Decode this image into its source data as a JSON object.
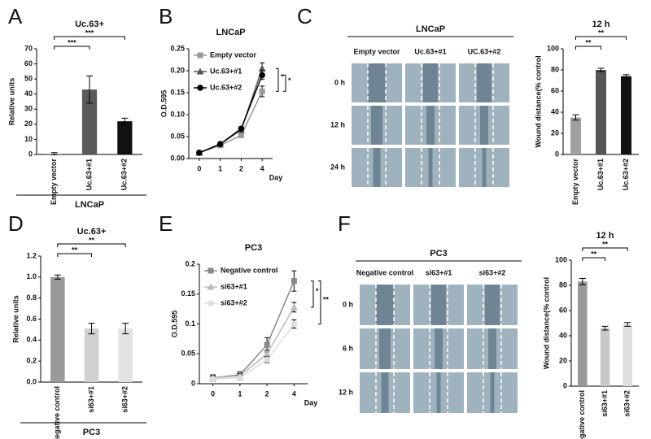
{
  "chart_data": [
    {
      "type": "bar",
      "panel": "A",
      "title": "Uc.63+",
      "ylabel": "Relative units",
      "group_label": "LNCaP",
      "categories": [
        "Empty vector",
        "Uc.63+#1",
        "Uc.63+#2"
      ],
      "values": [
        0.5,
        43,
        22
      ],
      "errors": [
        0.7,
        9,
        2
      ],
      "colors": [
        "#9a9a9a",
        "#5a5a5a",
        "#111111"
      ],
      "ylim": [
        0,
        70
      ],
      "yticks": [
        0,
        10,
        20,
        30,
        40,
        50,
        60,
        70
      ],
      "annotations": [
        "***",
        "***"
      ]
    },
    {
      "type": "line",
      "panel": "B",
      "title": "LNCaP",
      "ylabel": "O.D.595",
      "xlabel": "Day",
      "categories": [
        "0",
        "1",
        "2",
        "4"
      ],
      "series": [
        {
          "name": "Empty vector",
          "color": "#999999",
          "marker": "square",
          "values": [
            0.013,
            0.03,
            0.053,
            0.153
          ],
          "errors": [
            0.002,
            0.002,
            0.003,
            0.012
          ]
        },
        {
          "name": "Uc.63+#1",
          "color": "#555555",
          "marker": "triangle",
          "values": [
            0.013,
            0.033,
            0.065,
            0.205
          ],
          "errors": [
            0.002,
            0.002,
            0.004,
            0.013
          ]
        },
        {
          "name": "Uc.63+#2",
          "color": "#000000",
          "marker": "circle",
          "values": [
            0.013,
            0.033,
            0.068,
            0.19
          ],
          "errors": [
            0.002,
            0.002,
            0.004,
            0.01
          ]
        }
      ],
      "ylim": [
        0,
        0.25
      ],
      "yticks": [
        {
          "value": 0,
          "label": "0.00"
        },
        0.05,
        {
          "value": 0.1,
          "label": "0.10"
        },
        0.15,
        {
          "value": 0.2,
          "label": "0.20"
        },
        0.25
      ],
      "annotations": [
        "*",
        "*"
      ]
    },
    {
      "type": "bar",
      "title": "12 h",
      "ylabel": "Wound distance(% control",
      "categories": [
        "Empty vector",
        "Uc.63+#1",
        "Uc.63+#2"
      ],
      "values": [
        35,
        80,
        74
      ],
      "errors": [
        2.5,
        1.5,
        1.5
      ],
      "colors": [
        "#a0a0a0",
        "#555555",
        "#111111"
      ],
      "ylim": [
        0,
        100
      ],
      "yticks": [
        0,
        20,
        40,
        60,
        80,
        100
      ],
      "annotations": [
        "**",
        "**"
      ]
    },
    {
      "type": "bar",
      "panel": "D",
      "title": "Uc.63+",
      "ylabel": "Relative units",
      "group_label": "PC3",
      "categories": [
        "Negative control",
        "si63+#1",
        "si63+#2"
      ],
      "values": [
        1.0,
        0.51,
        0.51
      ],
      "errors": [
        0.02,
        0.05,
        0.05
      ],
      "colors": [
        "#999999",
        "#d0d0d0",
        "#e2e2e2"
      ],
      "ylim": [
        0,
        1.2
      ],
      "yticks": [
        {
          "value": 0,
          "label": "0.0"
        },
        0.2,
        0.4,
        0.6,
        0.8,
        {
          "value": 1,
          "label": "1.0"
        },
        1.2
      ],
      "annotations": [
        "**",
        "**"
      ]
    },
    {
      "type": "line",
      "panel": "E",
      "title": "PC3",
      "ylabel": "O.D.595",
      "xlabel": "Day",
      "categories": [
        "0",
        "1",
        "2",
        "4"
      ],
      "series": [
        {
          "name": "Negative control",
          "color": "#888888",
          "marker": "square",
          "values": [
            0.01,
            0.015,
            0.065,
            0.172
          ],
          "errors": [
            0.005,
            0.005,
            0.012,
            0.017
          ]
        },
        {
          "name": "si63+#1",
          "color": "#bbbbbb",
          "marker": "triangle",
          "values": [
            0.01,
            0.013,
            0.05,
            0.128
          ],
          "errors": [
            0.004,
            0.004,
            0.006,
            0.008
          ]
        },
        {
          "name": "si63+#2",
          "color": "#dddddd",
          "marker": "circle",
          "values": [
            0.008,
            0.01,
            0.04,
            0.1
          ],
          "errors": [
            0.004,
            0.004,
            0.005,
            0.007
          ]
        }
      ],
      "ylim": [
        0,
        0.2
      ],
      "yticks": [
        0,
        0.05,
        0.1,
        0.15,
        0.2
      ],
      "annotations": [
        "*",
        "**"
      ]
    },
    {
      "type": "bar",
      "title": "12 h",
      "ylabel": "Wound distance(% control",
      "categories": [
        "Negative control",
        "si63+#1",
        "si63+#2"
      ],
      "values": [
        83,
        46,
        49
      ],
      "errors": [
        2.5,
        1.5,
        1.5
      ],
      "colors": [
        "#999999",
        "#c8c8c8",
        "#dedede"
      ],
      "ylim": [
        0,
        100
      ],
      "yticks": [
        0,
        20,
        40,
        60,
        80,
        100
      ],
      "annotations": [
        "**",
        "**"
      ]
    }
  ],
  "wound_assays": [
    {
      "panel": "C",
      "title": "LNCaP",
      "columns": [
        "Empty vector",
        "Uc.63+#1",
        "UC.63+#2"
      ],
      "rows": [
        "0 h",
        "12 h",
        "24 h"
      ]
    },
    {
      "panel": "F",
      "title": "PC3",
      "columns": [
        "Negative control",
        "si63+#1",
        "si63+#2"
      ],
      "rows": [
        "0 h",
        "6 h",
        "12 h"
      ]
    }
  ]
}
